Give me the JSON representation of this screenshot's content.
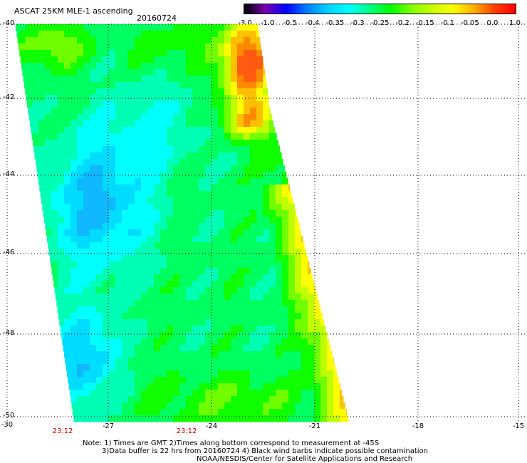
{
  "header": {
    "title": "ASCAT 25KM MLE-1 ascending",
    "date": "20160724"
  },
  "colorbar": {
    "labels": [
      "-3.0",
      "-1.0",
      "-0.5",
      "-0.4",
      "-0.35",
      "-0.3",
      "-0.25",
      "-0.2",
      "-0.15",
      "-0.1",
      "-0.05",
      "0.0",
      "1.0"
    ],
    "colors": [
      "#000000",
      "#7a00b0",
      "#0000ff",
      "#0080ff",
      "#00d0ff",
      "#00ffff",
      "#00ff88",
      "#00ff00",
      "#80ff00",
      "#c8ff00",
      "#ffff00",
      "#ffb000",
      "#ff4000",
      "#ff0000"
    ]
  },
  "axes": {
    "y_labels": [
      "-40",
      "-42",
      "-44",
      "-46",
      "-48",
      "-50"
    ],
    "x_labels": [
      "-30",
      "-27",
      "-24",
      "-21",
      "-18",
      "-15"
    ],
    "time_labels": [
      "23:12",
      "23:12"
    ]
  },
  "notes": {
    "line1": "Note: 1) Times are GMT 2)Times along bottom correspond to measurement at -45S",
    "line2": "3)Data buffer is 22 hrs from 20160724 4) Black wind barbs indicate possible contamination",
    "line3": "NOAA/NESDIS/Center for Satellite Applications and Research"
  }
}
